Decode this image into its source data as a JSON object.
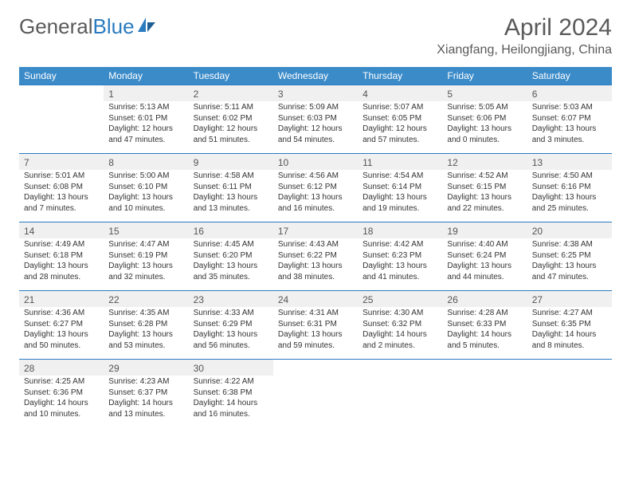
{
  "logo": {
    "part1": "General",
    "part2": "Blue"
  },
  "title": "April 2024",
  "location": "Xiangfang, Heilongjiang, China",
  "colors": {
    "header_bg": "#3b8bc9",
    "border": "#2b7bbf",
    "daynum_bg": "#f0f0f0",
    "text": "#333333",
    "title_text": "#5a5a5a"
  },
  "day_headers": [
    "Sunday",
    "Monday",
    "Tuesday",
    "Wednesday",
    "Thursday",
    "Friday",
    "Saturday"
  ],
  "weeks": [
    [
      null,
      {
        "n": "1",
        "sr": "Sunrise: 5:13 AM",
        "ss": "Sunset: 6:01 PM",
        "d1": "Daylight: 12 hours",
        "d2": "and 47 minutes."
      },
      {
        "n": "2",
        "sr": "Sunrise: 5:11 AM",
        "ss": "Sunset: 6:02 PM",
        "d1": "Daylight: 12 hours",
        "d2": "and 51 minutes."
      },
      {
        "n": "3",
        "sr": "Sunrise: 5:09 AM",
        "ss": "Sunset: 6:03 PM",
        "d1": "Daylight: 12 hours",
        "d2": "and 54 minutes."
      },
      {
        "n": "4",
        "sr": "Sunrise: 5:07 AM",
        "ss": "Sunset: 6:05 PM",
        "d1": "Daylight: 12 hours",
        "d2": "and 57 minutes."
      },
      {
        "n": "5",
        "sr": "Sunrise: 5:05 AM",
        "ss": "Sunset: 6:06 PM",
        "d1": "Daylight: 13 hours",
        "d2": "and 0 minutes."
      },
      {
        "n": "6",
        "sr": "Sunrise: 5:03 AM",
        "ss": "Sunset: 6:07 PM",
        "d1": "Daylight: 13 hours",
        "d2": "and 3 minutes."
      }
    ],
    [
      {
        "n": "7",
        "sr": "Sunrise: 5:01 AM",
        "ss": "Sunset: 6:08 PM",
        "d1": "Daylight: 13 hours",
        "d2": "and 7 minutes."
      },
      {
        "n": "8",
        "sr": "Sunrise: 5:00 AM",
        "ss": "Sunset: 6:10 PM",
        "d1": "Daylight: 13 hours",
        "d2": "and 10 minutes."
      },
      {
        "n": "9",
        "sr": "Sunrise: 4:58 AM",
        "ss": "Sunset: 6:11 PM",
        "d1": "Daylight: 13 hours",
        "d2": "and 13 minutes."
      },
      {
        "n": "10",
        "sr": "Sunrise: 4:56 AM",
        "ss": "Sunset: 6:12 PM",
        "d1": "Daylight: 13 hours",
        "d2": "and 16 minutes."
      },
      {
        "n": "11",
        "sr": "Sunrise: 4:54 AM",
        "ss": "Sunset: 6:14 PM",
        "d1": "Daylight: 13 hours",
        "d2": "and 19 minutes."
      },
      {
        "n": "12",
        "sr": "Sunrise: 4:52 AM",
        "ss": "Sunset: 6:15 PM",
        "d1": "Daylight: 13 hours",
        "d2": "and 22 minutes."
      },
      {
        "n": "13",
        "sr": "Sunrise: 4:50 AM",
        "ss": "Sunset: 6:16 PM",
        "d1": "Daylight: 13 hours",
        "d2": "and 25 minutes."
      }
    ],
    [
      {
        "n": "14",
        "sr": "Sunrise: 4:49 AM",
        "ss": "Sunset: 6:18 PM",
        "d1": "Daylight: 13 hours",
        "d2": "and 28 minutes."
      },
      {
        "n": "15",
        "sr": "Sunrise: 4:47 AM",
        "ss": "Sunset: 6:19 PM",
        "d1": "Daylight: 13 hours",
        "d2": "and 32 minutes."
      },
      {
        "n": "16",
        "sr": "Sunrise: 4:45 AM",
        "ss": "Sunset: 6:20 PM",
        "d1": "Daylight: 13 hours",
        "d2": "and 35 minutes."
      },
      {
        "n": "17",
        "sr": "Sunrise: 4:43 AM",
        "ss": "Sunset: 6:22 PM",
        "d1": "Daylight: 13 hours",
        "d2": "and 38 minutes."
      },
      {
        "n": "18",
        "sr": "Sunrise: 4:42 AM",
        "ss": "Sunset: 6:23 PM",
        "d1": "Daylight: 13 hours",
        "d2": "and 41 minutes."
      },
      {
        "n": "19",
        "sr": "Sunrise: 4:40 AM",
        "ss": "Sunset: 6:24 PM",
        "d1": "Daylight: 13 hours",
        "d2": "and 44 minutes."
      },
      {
        "n": "20",
        "sr": "Sunrise: 4:38 AM",
        "ss": "Sunset: 6:25 PM",
        "d1": "Daylight: 13 hours",
        "d2": "and 47 minutes."
      }
    ],
    [
      {
        "n": "21",
        "sr": "Sunrise: 4:36 AM",
        "ss": "Sunset: 6:27 PM",
        "d1": "Daylight: 13 hours",
        "d2": "and 50 minutes."
      },
      {
        "n": "22",
        "sr": "Sunrise: 4:35 AM",
        "ss": "Sunset: 6:28 PM",
        "d1": "Daylight: 13 hours",
        "d2": "and 53 minutes."
      },
      {
        "n": "23",
        "sr": "Sunrise: 4:33 AM",
        "ss": "Sunset: 6:29 PM",
        "d1": "Daylight: 13 hours",
        "d2": "and 56 minutes."
      },
      {
        "n": "24",
        "sr": "Sunrise: 4:31 AM",
        "ss": "Sunset: 6:31 PM",
        "d1": "Daylight: 13 hours",
        "d2": "and 59 minutes."
      },
      {
        "n": "25",
        "sr": "Sunrise: 4:30 AM",
        "ss": "Sunset: 6:32 PM",
        "d1": "Daylight: 14 hours",
        "d2": "and 2 minutes."
      },
      {
        "n": "26",
        "sr": "Sunrise: 4:28 AM",
        "ss": "Sunset: 6:33 PM",
        "d1": "Daylight: 14 hours",
        "d2": "and 5 minutes."
      },
      {
        "n": "27",
        "sr": "Sunrise: 4:27 AM",
        "ss": "Sunset: 6:35 PM",
        "d1": "Daylight: 14 hours",
        "d2": "and 8 minutes."
      }
    ],
    [
      {
        "n": "28",
        "sr": "Sunrise: 4:25 AM",
        "ss": "Sunset: 6:36 PM",
        "d1": "Daylight: 14 hours",
        "d2": "and 10 minutes."
      },
      {
        "n": "29",
        "sr": "Sunrise: 4:23 AM",
        "ss": "Sunset: 6:37 PM",
        "d1": "Daylight: 14 hours",
        "d2": "and 13 minutes."
      },
      {
        "n": "30",
        "sr": "Sunrise: 4:22 AM",
        "ss": "Sunset: 6:38 PM",
        "d1": "Daylight: 14 hours",
        "d2": "and 16 minutes."
      },
      null,
      null,
      null,
      null
    ]
  ]
}
